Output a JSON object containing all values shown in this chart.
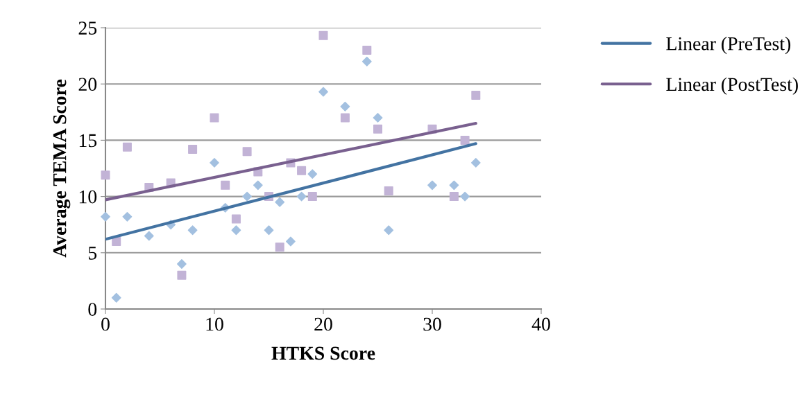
{
  "chart_data": {
    "type": "scatter",
    "xlabel": "HTKS Score",
    "ylabel": "Average TEMA Score",
    "xlim": [
      0,
      40
    ],
    "xticks": [
      0,
      10,
      20,
      30,
      40
    ],
    "ylim": [
      0,
      25
    ],
    "yticks": [
      0,
      5,
      10,
      15,
      20,
      25
    ],
    "grid": "y",
    "legend": "top right",
    "series": [
      {
        "marker": "diamond",
        "color": "#a3c0e0",
        "x": [
          0,
          1,
          2,
          4,
          6,
          7,
          8,
          10,
          11,
          12,
          13,
          14,
          15,
          16,
          17,
          18,
          19,
          20,
          22,
          24,
          25,
          26,
          30,
          32,
          33,
          34
        ],
        "values": [
          8.2,
          1,
          8.2,
          6.5,
          7.5,
          4,
          7,
          13,
          9,
          7,
          10,
          11,
          7,
          9.5,
          6,
          10,
          12,
          19.3,
          18,
          22,
          17,
          7,
          11,
          11,
          10,
          13
        ]
      },
      {
        "marker": "square",
        "color": "#c2b3d6",
        "x": [
          0,
          1,
          2,
          4,
          6,
          7,
          8,
          10,
          11,
          12,
          13,
          14,
          15,
          16,
          17,
          18,
          19,
          20,
          22,
          24,
          25,
          26,
          30,
          32,
          33,
          34
        ],
        "values": [
          11.9,
          6,
          14.4,
          10.8,
          11.2,
          3,
          14.2,
          17,
          11,
          8,
          14,
          12.2,
          10,
          5.5,
          13,
          12.3,
          10,
          24.3,
          17,
          23,
          16,
          10.5,
          16,
          10,
          15,
          19
        ]
      },
      {
        "type": "line",
        "name": "Linear (PreTest)",
        "color": "#4373a2",
        "x": [
          0,
          34
        ],
        "values": [
          6.2,
          14.7
        ]
      },
      {
        "type": "line",
        "name": "Linear (PostTest)",
        "color": "#79608f",
        "x": [
          0,
          34
        ],
        "values": [
          9.7,
          16.5
        ]
      }
    ]
  }
}
